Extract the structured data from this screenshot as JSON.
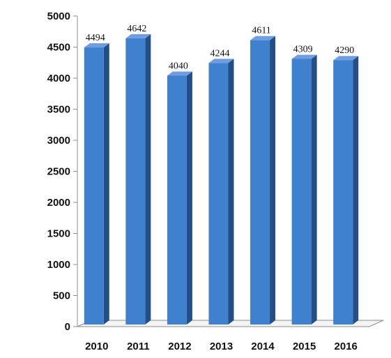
{
  "chart_data": {
    "type": "bar",
    "categories": [
      "2010",
      "2011",
      "2012",
      "2013",
      "2014",
      "2015",
      "2016"
    ],
    "values": [
      4494,
      4642,
      4040,
      4244,
      4611,
      4309,
      4290
    ],
    "data_labels": [
      "4494",
      "4642",
      "4040",
      "4244",
      "4611",
      "4309",
      "4290"
    ],
    "y_ticks": [
      "0",
      "500",
      "1000",
      "1500",
      "2000",
      "2500",
      "3000",
      "3500",
      "4000",
      "4500",
      "5000"
    ],
    "title": "",
    "xlabel": "",
    "ylabel": "",
    "ylim": [
      0,
      5000
    ],
    "grid": false,
    "legend": "none",
    "style": "3d-column",
    "colors": {
      "bar_front": "#3f80cf",
      "bar_side": "#244f86",
      "bar_top": "#6f9ee0",
      "axis": "#8c8c8c"
    }
  }
}
